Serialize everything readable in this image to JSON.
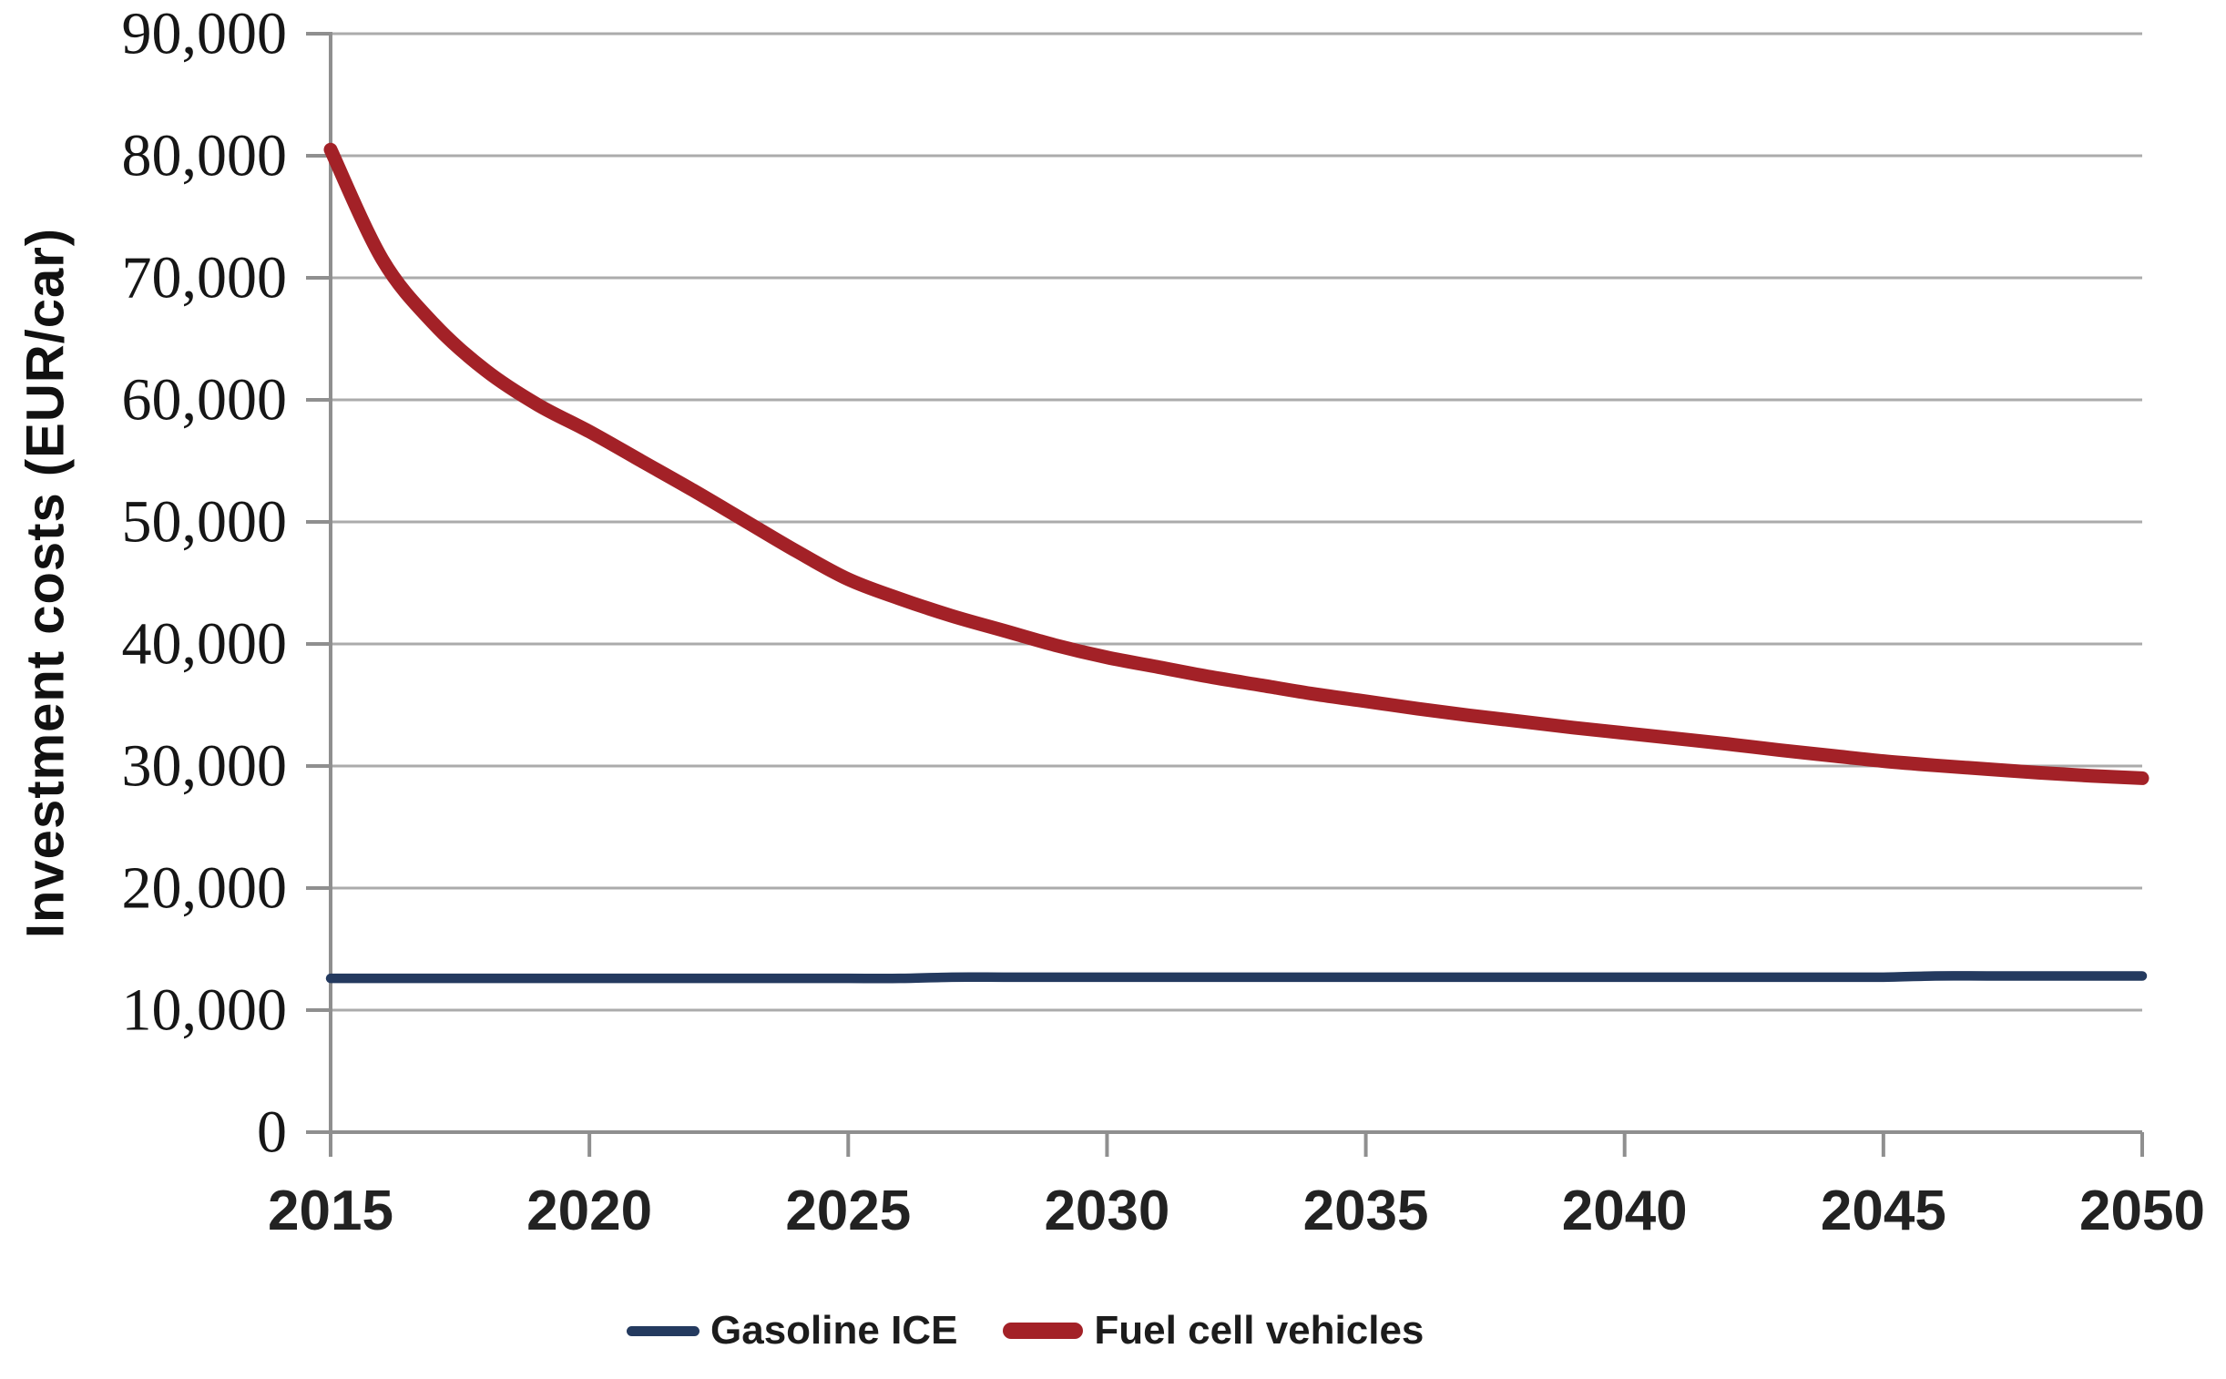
{
  "figure": {
    "background": "#ffffff"
  },
  "chart_data": {
    "type": "line",
    "title": "",
    "xlabel": "",
    "ylabel": "Investment costs (EUR/car)",
    "xlim": [
      2015,
      2050
    ],
    "ylim": [
      0,
      90000
    ],
    "grid": "horizontal",
    "legend_position": "bottom-center",
    "x_tick_values": [
      2015,
      2020,
      2025,
      2030,
      2035,
      2040,
      2045,
      2050
    ],
    "y_tick_values": [
      0,
      10000,
      20000,
      30000,
      40000,
      50000,
      60000,
      70000,
      80000,
      90000
    ],
    "y_tick_labels": [
      "0",
      "10,000",
      "20,000",
      "30,000",
      "40,000",
      "50,000",
      "60,000",
      "70,000",
      "80,000",
      "90,000"
    ],
    "colors": {
      "grid": "#ababab",
      "axis": "#8f8f8f",
      "gasoline_ice": "#243a5f",
      "fuel_cell": "#a32127"
    },
    "x": [
      2015,
      2016,
      2017,
      2018,
      2019,
      2020,
      2021,
      2022,
      2023,
      2024,
      2025,
      2026,
      2027,
      2028,
      2029,
      2030,
      2031,
      2032,
      2033,
      2034,
      2035,
      2036,
      2037,
      2038,
      2039,
      2040,
      2041,
      2042,
      2043,
      2044,
      2045,
      2046,
      2047,
      2048,
      2049,
      2050
    ],
    "series": [
      {
        "name": "Gasoline ICE",
        "color": "#243a5f",
        "stroke_width": 10.5,
        "values": [
          12600,
          12600,
          12600,
          12600,
          12600,
          12600,
          12600,
          12600,
          12600,
          12600,
          12600,
          12600,
          12700,
          12700,
          12700,
          12700,
          12700,
          12700,
          12700,
          12700,
          12700,
          12700,
          12700,
          12700,
          12700,
          12700,
          12700,
          12700,
          12700,
          12700,
          12700,
          12800,
          12800,
          12800,
          12800,
          12800
        ]
      },
      {
        "name": "Fuel cell vehicles",
        "color": "#a32127",
        "stroke_width": 15,
        "values": [
          80500,
          71500,
          66200,
          62400,
          59600,
          57400,
          55000,
          52600,
          50100,
          47600,
          45300,
          43700,
          42300,
          41100,
          39900,
          38900,
          38100,
          37300,
          36600,
          35900,
          35300,
          34700,
          34150,
          33650,
          33150,
          32700,
          32250,
          31800,
          31300,
          30850,
          30400,
          30050,
          29750,
          29450,
          29200,
          29000
        ]
      }
    ]
  }
}
